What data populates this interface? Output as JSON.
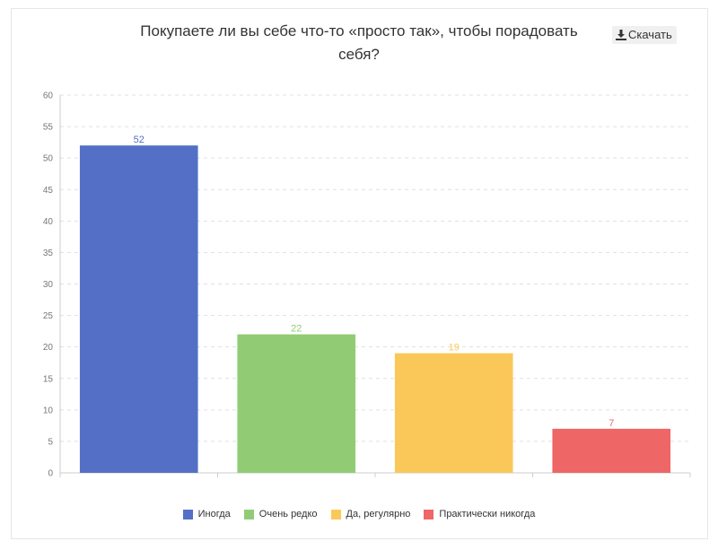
{
  "title": "Покупаете ли вы себе что-то «просто так», чтобы порадовать себя?",
  "download_label": "Скачать",
  "chart_data": {
    "type": "bar",
    "categories": [
      "Иногда",
      "Очень редко",
      "Да, регулярно",
      "Практически никогда"
    ],
    "values": [
      52,
      22,
      19,
      7
    ],
    "colors": [
      "#5470c6",
      "#91cc75",
      "#fac858",
      "#ee6666"
    ],
    "ylim": [
      0,
      60
    ],
    "yticks": [
      "0",
      "5",
      "10",
      "15",
      "20",
      "25",
      "30",
      "35",
      "40",
      "45",
      "50",
      "55",
      "60"
    ],
    "grid": true,
    "legend_position": "bottom"
  },
  "legend": {
    "items": [
      {
        "label": "Иногда",
        "color": "#5470c6"
      },
      {
        "label": "Очень редко",
        "color": "#91cc75"
      },
      {
        "label": "Да, регулярно",
        "color": "#fac858"
      },
      {
        "label": "Практически никогда",
        "color": "#ee6666"
      }
    ]
  }
}
